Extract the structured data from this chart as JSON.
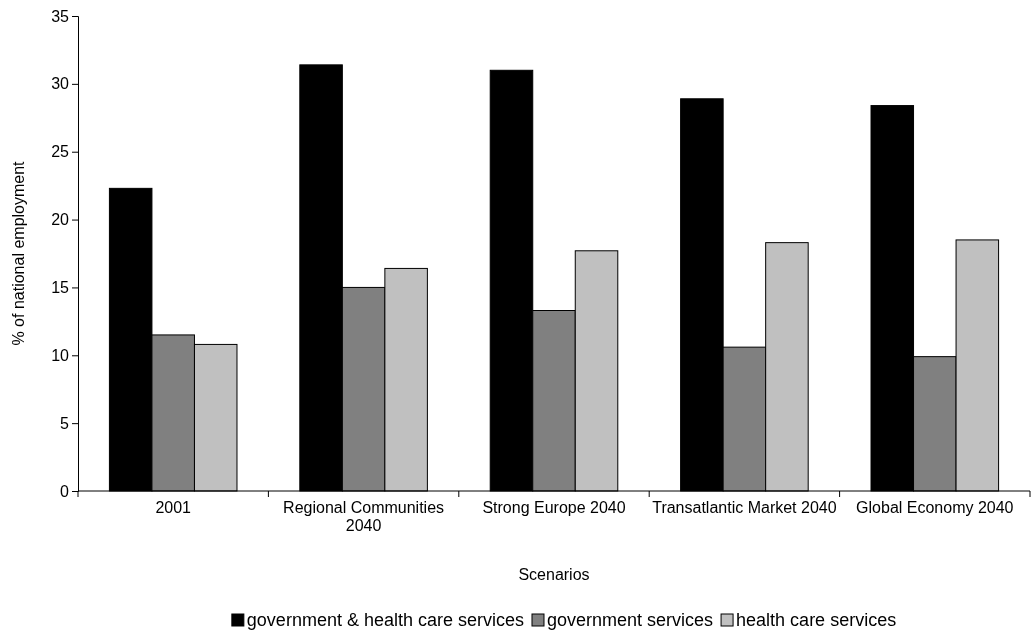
{
  "chart_data": {
    "type": "bar",
    "xlabel": "Scenarios",
    "ylabel": "% of national employment",
    "categories": [
      "2001",
      "Regional Communities 2040",
      "Strong Europe 2040",
      "Transatlantic Market 2040",
      "Global Economy 2040"
    ],
    "series": [
      {
        "name": "government & health care services",
        "color": "#000000",
        "values": [
          22.3,
          31.4,
          31.0,
          28.9,
          28.4
        ]
      },
      {
        "name": "government services",
        "color": "#808080",
        "values": [
          11.5,
          15.0,
          13.3,
          10.6,
          9.9
        ]
      },
      {
        "name": "health care services",
        "color": "#c0c0c0",
        "values": [
          10.8,
          16.4,
          17.7,
          18.3,
          18.5
        ]
      }
    ],
    "ylim": [
      0,
      35
    ],
    "yticks": [
      0,
      5,
      10,
      15,
      20,
      25,
      30,
      35
    ],
    "grid": false,
    "legend": "bottom"
  }
}
